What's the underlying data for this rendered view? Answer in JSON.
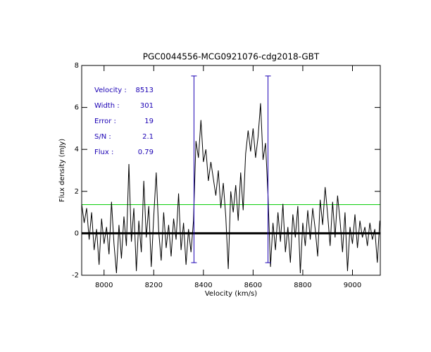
{
  "chart_data": {
    "type": "line",
    "title": "PGC0044556-MCG0921076-cdg2018-GBT",
    "xlabel": "Velocity (km/s)",
    "ylabel": "Flux density (mJy)",
    "color": "#000000",
    "x": [
      7910,
      7920,
      7930,
      7940,
      7950,
      7960,
      7970,
      7980,
      7990,
      8000,
      8010,
      8020,
      8030,
      8040,
      8050,
      8060,
      8070,
      8080,
      8090,
      8100,
      8110,
      8120,
      8130,
      8140,
      8150,
      8160,
      8170,
      8180,
      8190,
      8200,
      8210,
      8220,
      8230,
      8240,
      8250,
      8260,
      8270,
      8280,
      8290,
      8300,
      8310,
      8320,
      8330,
      8340,
      8350,
      8360,
      8370,
      8380,
      8390,
      8400,
      8410,
      8420,
      8430,
      8440,
      8450,
      8460,
      8470,
      8480,
      8490,
      8500,
      8510,
      8520,
      8530,
      8540,
      8550,
      8560,
      8570,
      8580,
      8590,
      8600,
      8610,
      8620,
      8630,
      8640,
      8650,
      8660,
      8670,
      8680,
      8690,
      8700,
      8710,
      8720,
      8730,
      8740,
      8750,
      8760,
      8770,
      8780,
      8790,
      8800,
      8810,
      8820,
      8830,
      8840,
      8850,
      8860,
      8870,
      8880,
      8890,
      8900,
      8910,
      8920,
      8930,
      8940,
      8950,
      8960,
      8970,
      8980,
      8990,
      9000,
      9010,
      9020,
      9030,
      9040,
      9050,
      9060,
      9070,
      9080,
      9090,
      9100,
      9110
    ],
    "values": [
      1.4,
      0.5,
      1.2,
      -0.3,
      1.0,
      -0.8,
      0.2,
      -1.5,
      0.7,
      -0.5,
      0.3,
      -1.0,
      1.5,
      -0.5,
      -1.9,
      0.4,
      -1.2,
      0.8,
      -0.6,
      3.3,
      -0.4,
      1.2,
      -1.8,
      0.6,
      -0.9,
      2.5,
      -0.2,
      1.3,
      -1.6,
      0.8,
      2.9,
      0.1,
      -1.3,
      1.0,
      -0.7,
      0.4,
      -1.1,
      0.7,
      -0.3,
      1.9,
      -0.8,
      0.5,
      -1.5,
      0.2,
      -0.9,
      0.6,
      4.4,
      3.6,
      5.4,
      3.4,
      4.0,
      2.5,
      3.4,
      2.6,
      1.8,
      3.0,
      1.2,
      2.4,
      0.8,
      -1.7,
      2.0,
      1.0,
      2.3,
      0.6,
      2.9,
      1.1,
      3.8,
      4.9,
      3.9,
      5.0,
      3.6,
      4.6,
      6.2,
      3.5,
      4.3,
      1.8,
      -1.6,
      0.5,
      -0.8,
      1.0,
      -0.4,
      1.4,
      -0.9,
      0.3,
      -1.4,
      0.9,
      -0.2,
      1.3,
      -1.9,
      0.5,
      -0.6,
      1.1,
      -0.3,
      1.2,
      0.2,
      -1.1,
      1.6,
      0.4,
      2.2,
      0.9,
      -0.6,
      1.5,
      -0.2,
      1.8,
      0.6,
      -0.9,
      1.0,
      -1.8,
      0.3,
      -0.5,
      0.9,
      -0.7,
      0.6,
      -0.2,
      0.3,
      -0.6,
      0.5,
      -0.3,
      0.2,
      -1.4,
      0.6
    ],
    "xlim": [
      7910,
      9112
    ],
    "ylim": [
      -2,
      8
    ],
    "xticks": [
      8000,
      8200,
      8400,
      8600,
      8800,
      9000
    ],
    "yticks": [
      -2,
      0,
      2,
      4,
      6,
      8
    ],
    "reference_level": {
      "value": 1.37,
      "color": "#00cc00"
    },
    "markers": {
      "x": [
        8362,
        8660
      ],
      "top": 7.5,
      "bottom": -1.4,
      "color": "#1a00b4"
    },
    "annotation_color": "#1a00b4",
    "annotations": [
      {
        "label": "Velocity :",
        "value": 8513
      },
      {
        "label": "Width :",
        "value": 301
      },
      {
        "label": "Error :",
        "value": 19
      },
      {
        "label": "S/N :",
        "value": 2.1
      },
      {
        "label": "Flux :",
        "value": 0.79
      }
    ]
  }
}
